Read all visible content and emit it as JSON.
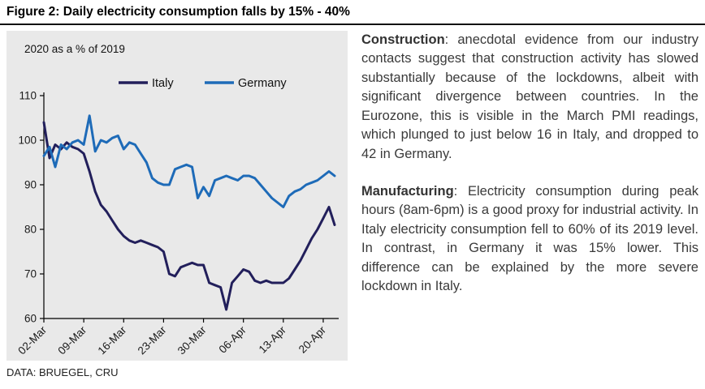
{
  "figure": {
    "title": "Figure 2: Daily electricity consumption falls by 15% - 40%",
    "source": "DATA: BRUEGEL, CRU"
  },
  "commentary": {
    "paragraphs": [
      {
        "lead": "Construction",
        "text": ": anecdotal evidence from our industry contacts suggest that construction activity has slowed substantially because of the lockdowns, albeit with significant divergence between countries. In the Eurozone, this is visible in the March PMI readings, which plunged to just below 16 in Italy, and dropped to 42 in Germany."
      },
      {
        "lead": "Manufacturing",
        "text": ": Electricity consumption during peak hours (8am-6pm) is a good proxy for industrial activity. In Italy electricity consumption fell to 60% of its 2019 level. In contrast, in Germany it was 15% lower. This difference can be explained by the more severe lockdown in Italy."
      }
    ]
  },
  "chart_data": {
    "type": "line",
    "subtitle": "2020 as a % of 2019",
    "grid": false,
    "legend_position": "top",
    "ylim": [
      60,
      110
    ],
    "yticks": [
      60,
      70,
      80,
      90,
      100,
      110
    ],
    "x": [
      "02-Mar",
      "03-Mar",
      "04-Mar",
      "05-Mar",
      "06-Mar",
      "07-Mar",
      "08-Mar",
      "09-Mar",
      "10-Mar",
      "11-Mar",
      "12-Mar",
      "13-Mar",
      "14-Mar",
      "15-Mar",
      "16-Mar",
      "17-Mar",
      "18-Mar",
      "19-Mar",
      "20-Mar",
      "21-Mar",
      "22-Mar",
      "23-Mar",
      "24-Mar",
      "25-Mar",
      "26-Mar",
      "27-Mar",
      "28-Mar",
      "29-Mar",
      "30-Mar",
      "31-Mar",
      "01-Apr",
      "02-Apr",
      "03-Apr",
      "04-Apr",
      "05-Apr",
      "06-Apr",
      "07-Apr",
      "08-Apr",
      "09-Apr",
      "10-Apr",
      "11-Apr",
      "12-Apr",
      "13-Apr",
      "14-Apr",
      "15-Apr",
      "16-Apr",
      "17-Apr",
      "18-Apr",
      "19-Apr",
      "20-Apr",
      "21-Apr",
      "22-Apr"
    ],
    "xticks": [
      {
        "index": 0,
        "label": "02-Mar"
      },
      {
        "index": 7,
        "label": "09-Mar"
      },
      {
        "index": 14,
        "label": "16-Mar"
      },
      {
        "index": 21,
        "label": "23-Mar"
      },
      {
        "index": 28,
        "label": "30-Mar"
      },
      {
        "index": 35,
        "label": "06-Apr"
      },
      {
        "index": 42,
        "label": "13-Apr"
      },
      {
        "index": 49,
        "label": "20-Apr"
      }
    ],
    "series": [
      {
        "name": "Italy",
        "color": "#221f5b",
        "values": [
          104,
          96,
          99,
          98,
          99.5,
          98.5,
          98,
          97,
          93,
          88.5,
          85.5,
          84,
          82,
          80,
          78.5,
          77.5,
          77,
          77.5,
          77,
          76.5,
          76,
          75,
          70,
          69.5,
          71.5,
          72,
          72.5,
          72,
          72,
          68,
          67.5,
          67,
          62,
          68,
          69.5,
          71,
          70.5,
          68.5,
          68,
          68.5,
          68,
          68,
          68,
          69,
          71,
          73,
          75.5,
          78,
          80,
          82.5,
          85,
          81
        ]
      },
      {
        "name": "Germany",
        "color": "#1e6bb8",
        "values": [
          96.5,
          98.5,
          94,
          99,
          98,
          99.5,
          100,
          99,
          105.5,
          97.5,
          100,
          99.5,
          100.5,
          101,
          98,
          99.5,
          99,
          97,
          95,
          91.5,
          90.5,
          90,
          90,
          93.5,
          94,
          94.5,
          94,
          87,
          89.5,
          87.5,
          91,
          91.5,
          92,
          91.5,
          91,
          92,
          92,
          91.5,
          90,
          88.5,
          87,
          86,
          85,
          87.5,
          88.5,
          89,
          90,
          90.5,
          91,
          92,
          93,
          92
        ]
      }
    ]
  }
}
